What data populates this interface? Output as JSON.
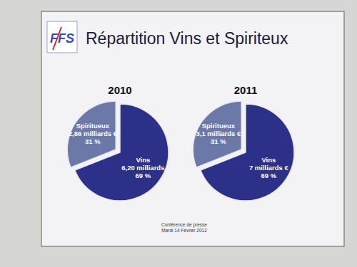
{
  "page": {
    "logo": "FFS",
    "title": "Répartition Vins et Spiriteux",
    "footer": [
      "Conférence de presse",
      "Mardi 14 Février 2012"
    ]
  },
  "chart_data": [
    {
      "type": "pie",
      "title": "2010",
      "categories": [
        "Spiritueux",
        "Vins"
      ],
      "values": [
        31,
        69
      ],
      "value_labels": [
        "31 %",
        "69 %"
      ],
      "amount_labels": [
        "2,86 milliards €",
        "6,20 milliards"
      ],
      "colors": [
        "#6b78a8",
        "#2c3088"
      ],
      "data_labels": true
    },
    {
      "type": "pie",
      "title": "2011",
      "categories": [
        "Spiritueux",
        "Vins"
      ],
      "values": [
        31,
        69
      ],
      "value_labels": [
        "31 %",
        "69 %"
      ],
      "amount_labels": [
        "3,1 milliards €",
        "7 milliards €"
      ],
      "colors": [
        "#6b78a8",
        "#2c3088"
      ],
      "data_labels": true
    }
  ]
}
